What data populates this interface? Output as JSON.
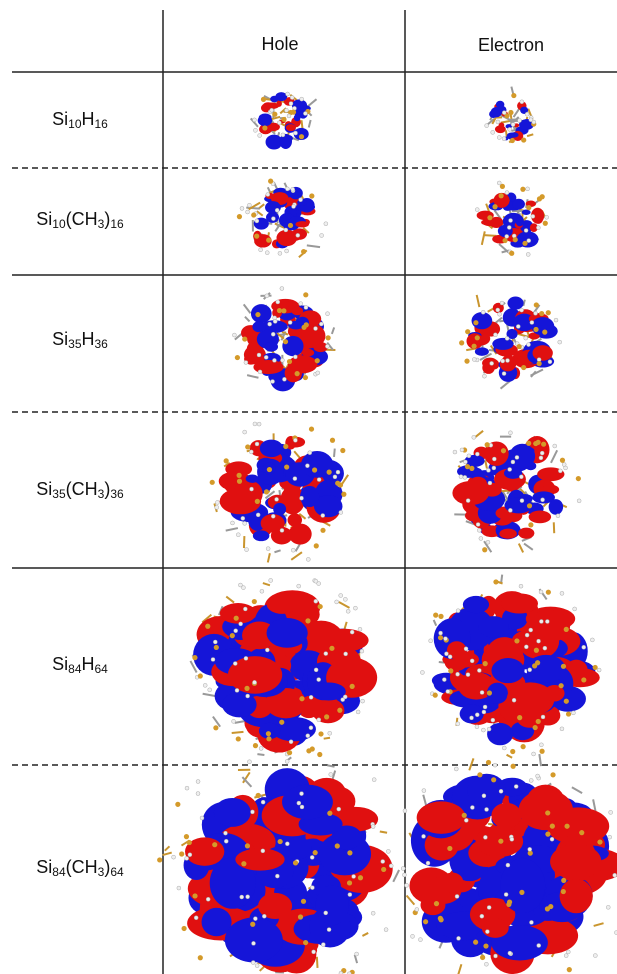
{
  "header": {
    "columns": [
      "Hole",
      "Electron"
    ]
  },
  "rows": [
    {
      "formula": [
        "Si",
        "10",
        "H",
        "16"
      ]
    },
    {
      "formula": [
        "Si",
        "10",
        "(CH",
        "3",
        ")",
        "16"
      ]
    },
    {
      "formula": [
        "Si",
        "35",
        "H",
        "36"
      ]
    },
    {
      "formula": [
        "Si",
        "35",
        "(CH",
        "3",
        ")",
        "36"
      ]
    },
    {
      "formula": [
        "Si",
        "84",
        "H",
        "64"
      ]
    },
    {
      "formula": [
        "Si",
        "84",
        "(CH",
        "3",
        ")",
        "64"
      ]
    }
  ]
}
